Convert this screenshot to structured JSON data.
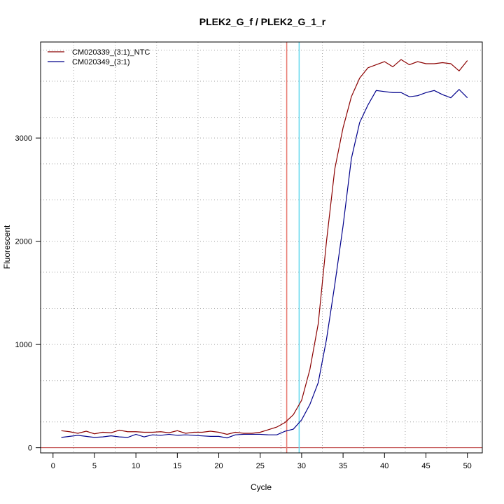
{
  "chart_data": {
    "type": "line",
    "title": "PLEK2_G_f / PLEK2_G_1_r",
    "xlabel": "Cycle",
    "ylabel": "Fluorescent",
    "xlim": [
      -1.5,
      51.8
    ],
    "ylim": [
      -50,
      3930
    ],
    "x_ticks": [
      0,
      5,
      10,
      15,
      20,
      25,
      30,
      35,
      40,
      45,
      50
    ],
    "y_ticks": [
      0,
      1000,
      2000,
      3000
    ],
    "grid": {
      "vertical": [
        2.5,
        7.5,
        12.5,
        17.5,
        22.5,
        27.5,
        32.5,
        37.5,
        42.5,
        47.5
      ],
      "horizontal": [
        250,
        650,
        1000,
        1350,
        1700,
        2000,
        2400,
        2750,
        3000,
        3200,
        3550,
        3850
      ]
    },
    "legend_position": "top-left",
    "baseline": {
      "y": 0,
      "color": "#b22222"
    },
    "threshold_lines": [
      {
        "x": 28.2,
        "color": "#e8786e"
      },
      {
        "x": 29.7,
        "color": "#66d9ee"
      }
    ],
    "x": [
      1,
      2,
      3,
      4,
      5,
      6,
      7,
      8,
      9,
      10,
      11,
      12,
      13,
      14,
      15,
      16,
      17,
      18,
      19,
      20,
      21,
      22,
      23,
      24,
      25,
      26,
      27,
      28,
      29,
      30,
      31,
      32,
      33,
      34,
      35,
      36,
      37,
      38,
      39,
      40,
      41,
      42,
      43,
      44,
      45,
      46,
      47,
      48,
      49,
      50
    ],
    "series": [
      {
        "name": "CM020339_(3:1)_NTC",
        "color": "#8b0000",
        "values": [
          165,
          155,
          140,
          160,
          135,
          150,
          145,
          170,
          155,
          155,
          150,
          150,
          155,
          145,
          165,
          140,
          150,
          150,
          160,
          150,
          130,
          150,
          140,
          140,
          150,
          175,
          200,
          245,
          320,
          460,
          760,
          1200,
          2000,
          2700,
          3100,
          3400,
          3580,
          3680,
          3710,
          3740,
          3690,
          3760,
          3710,
          3740,
          3720,
          3720,
          3730,
          3720,
          3650,
          3750
        ]
      },
      {
        "name": "CM020349_(3:1)",
        "color": "#00008b",
        "values": [
          100,
          110,
          120,
          110,
          100,
          105,
          115,
          105,
          100,
          130,
          105,
          125,
          120,
          130,
          120,
          125,
          120,
          115,
          110,
          110,
          95,
          125,
          130,
          130,
          130,
          125,
          125,
          160,
          180,
          270,
          420,
          630,
          1050,
          1580,
          2150,
          2800,
          3150,
          3320,
          3460,
          3450,
          3440,
          3440,
          3400,
          3410,
          3440,
          3460,
          3420,
          3390,
          3470,
          3390
        ]
      }
    ]
  }
}
